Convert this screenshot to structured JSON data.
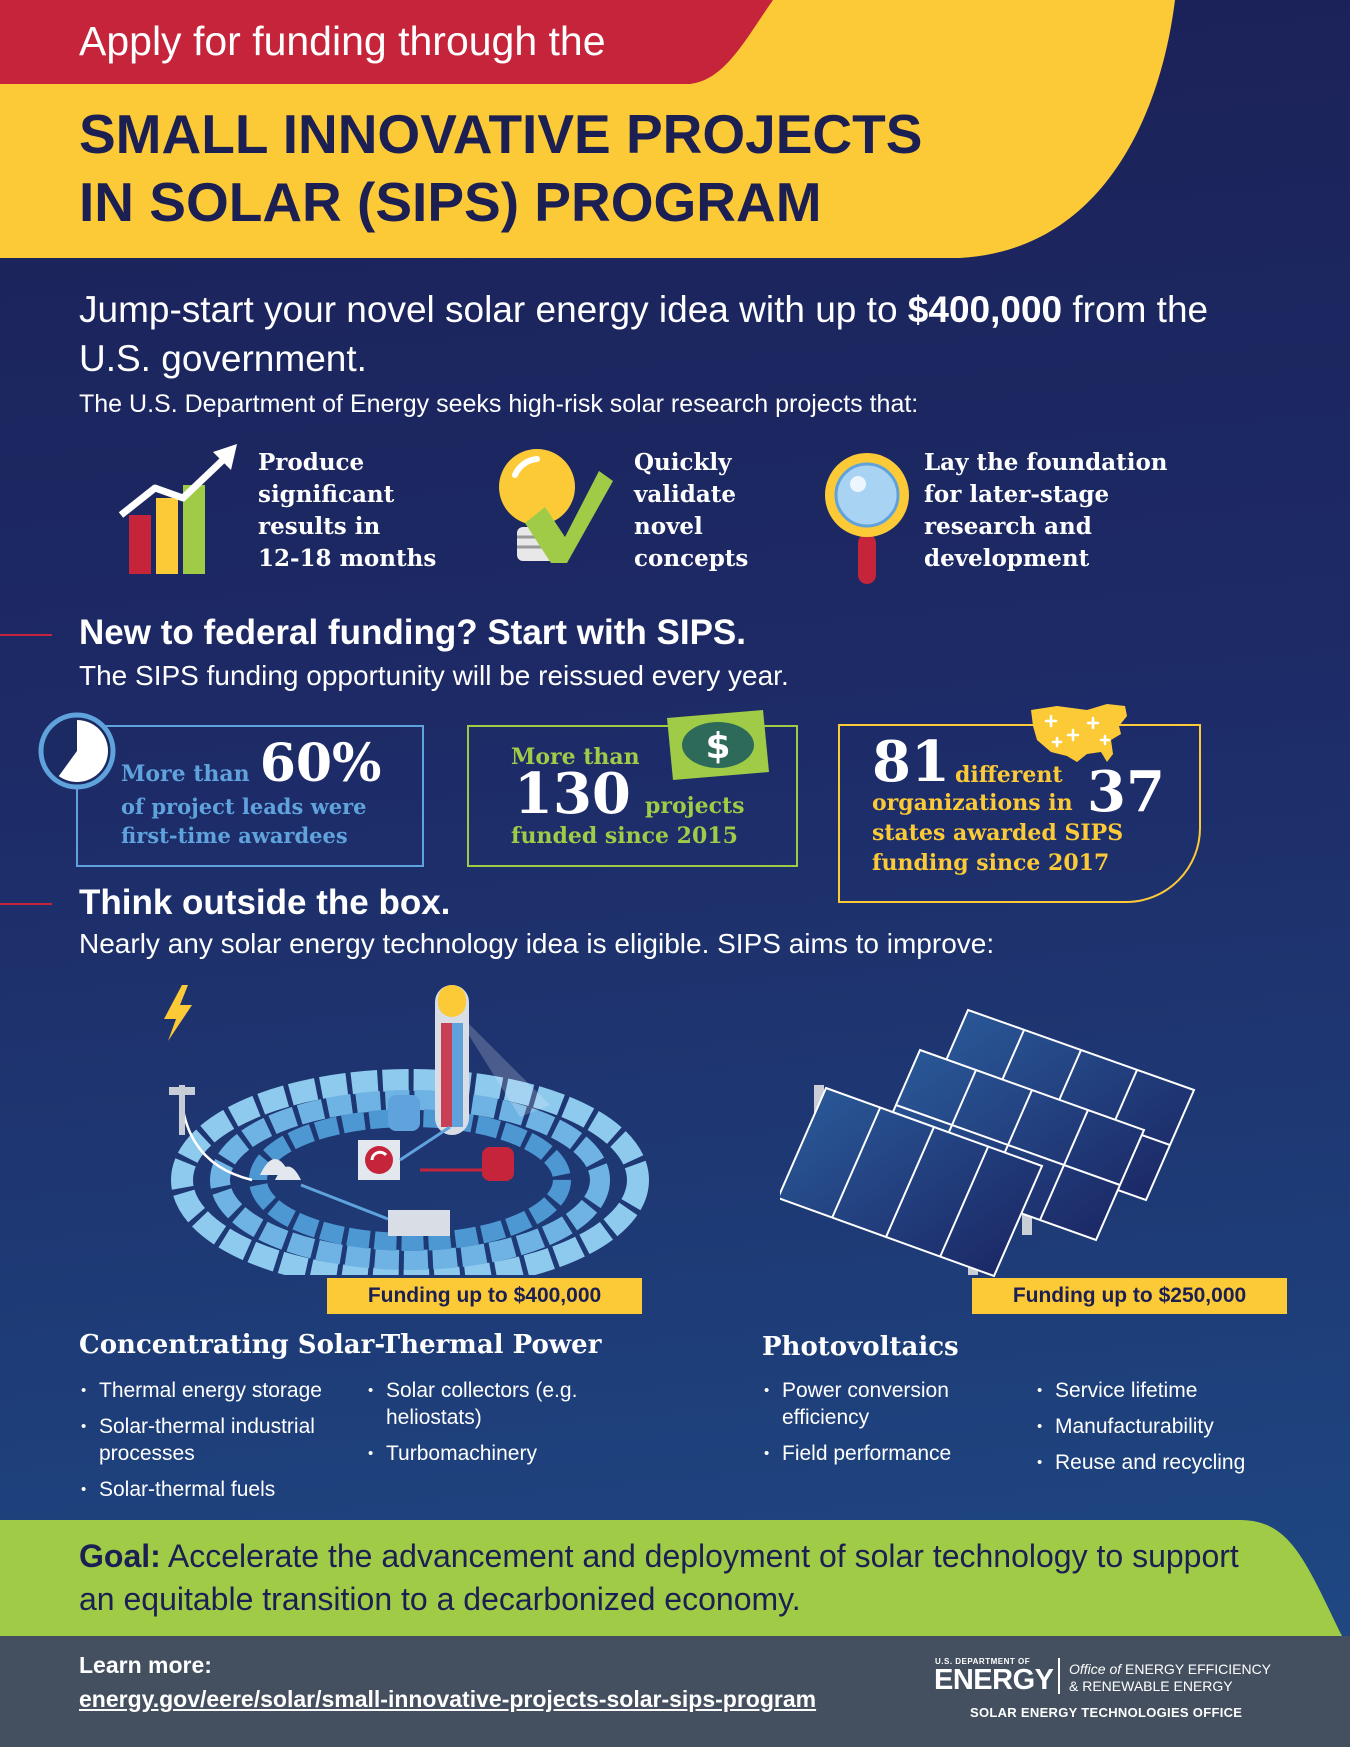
{
  "header": {
    "subhead": "Apply for funding through the",
    "title_line1": "SMALL INNOVATIVE PROJECTS",
    "title_line2": "IN SOLAR (SIPS) PROGRAM"
  },
  "intro": {
    "main_before": "Jump-start your novel solar energy idea with up to ",
    "main_amount": "$400,000",
    "main_after": " from the U.S. government.",
    "sub": "The U.S. Department of Energy seeks high-risk solar research projects that:"
  },
  "features": [
    {
      "icon": "bar-chart-icon",
      "lines": [
        "Produce",
        "significant",
        "results in",
        "12-18 months"
      ]
    },
    {
      "icon": "lightbulb-check-icon",
      "lines": [
        "Quickly",
        "validate",
        "novel",
        "concepts"
      ]
    },
    {
      "icon": "magnifying-glass-icon",
      "lines": [
        "Lay the foundation",
        "for later-stage",
        "research and",
        "development"
      ]
    }
  ],
  "section_new": {
    "title": "New to federal funding? Start with SIPS.",
    "sub": "The SIPS funding opportunity will be reissued every year."
  },
  "stats": {
    "first_time": {
      "prefix": "More than",
      "value": "60%",
      "fraction": 0.6,
      "line2": "of project leads were",
      "line3": "first-time awardees"
    },
    "projects": {
      "prefix": "More than",
      "value": "130",
      "suffix": "projects",
      "line3": "funded since 2015"
    },
    "orgs": {
      "value1": "81",
      "word1": "different",
      "line2": "organizations in",
      "value2": "37",
      "line3": "states awarded SIPS",
      "line4": "funding since 2017"
    }
  },
  "section_think": {
    "title": "Think outside the box.",
    "sub": "Nearly any solar energy technology idea is eligible. SIPS aims to improve:"
  },
  "csp": {
    "funding": "Funding up to $400,000",
    "title": "Concentrating Solar-Thermal Power",
    "col1": [
      "Thermal energy storage",
      "Solar-thermal industrial processes",
      "Solar-thermal fuels"
    ],
    "col2": [
      "Solar collectors (e.g. heliostats)",
      "Turbomachinery"
    ]
  },
  "pv": {
    "funding": "Funding up to $250,000",
    "title": "Photovoltaics",
    "col1": [
      "Power conversion efficiency",
      "Field performance"
    ],
    "col2": [
      "Service lifetime",
      "Manufacturability",
      "Reuse and recycling"
    ]
  },
  "goal": {
    "label": "Goal:",
    "text": " Accelerate the advancement and deployment of solar technology to support an equitable transition to a decarbonized economy."
  },
  "footer": {
    "learn_label": "Learn more:",
    "url": "energy.gov/eere/solar/small-innovative-projects-solar-sips-program",
    "logo_dept": "U.S. DEPARTMENT OF",
    "logo_energy": "ENERGY",
    "logo_office_prefix": "Office of",
    "logo_office_line1": "ENERGY EFFICIENCY",
    "logo_office_line2": "& RENEWABLE ENERGY",
    "office_name": "SOLAR ENERGY TECHNOLOGIES OFFICE"
  },
  "colors": {
    "navy": "#1c1f52",
    "red": "#c5243a",
    "yellow": "#fcca37",
    "green": "#9fcb47",
    "light_blue": "#5fa2dc",
    "footer_gray": "#44505f"
  }
}
